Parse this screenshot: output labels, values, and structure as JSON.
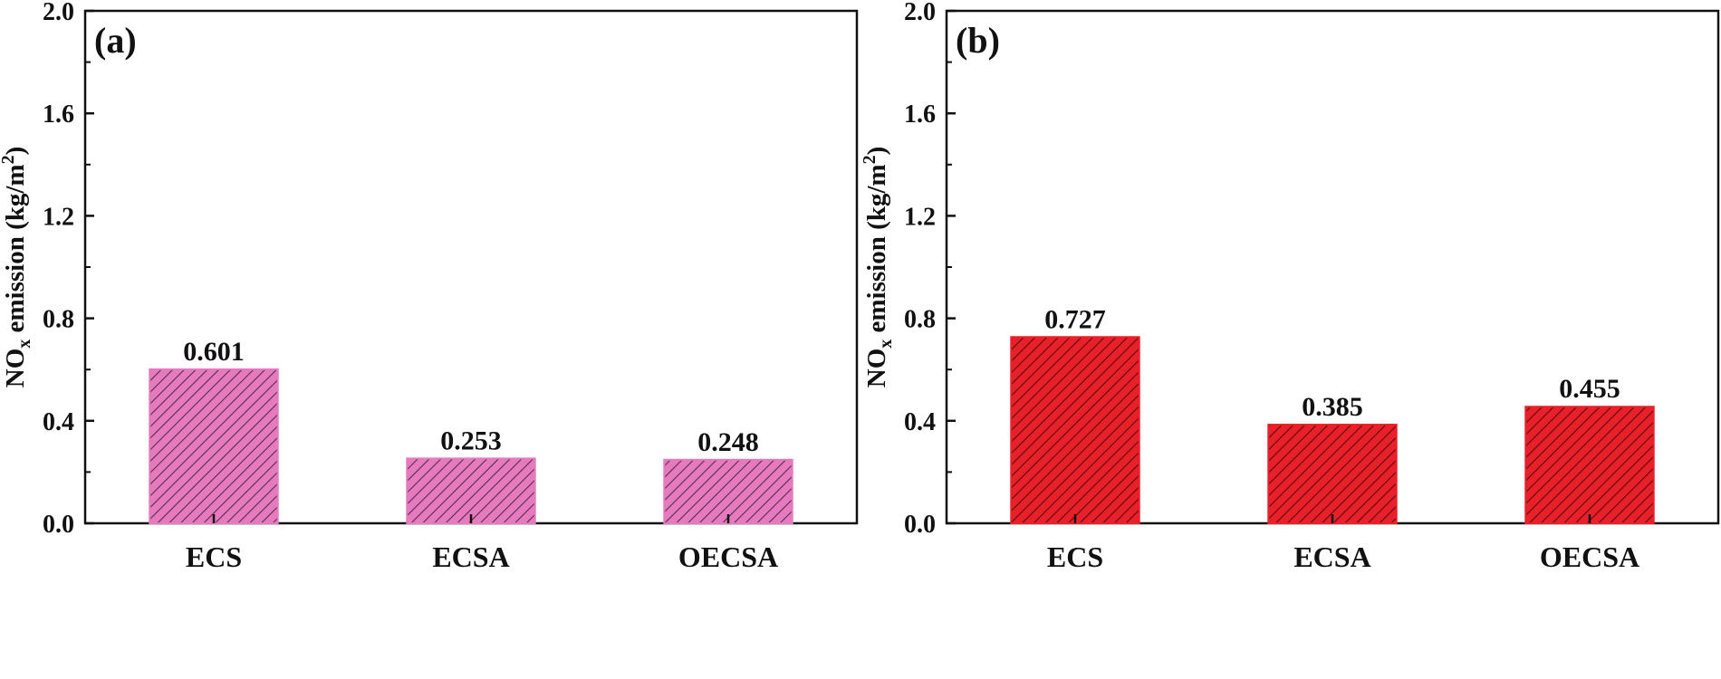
{
  "chart_data": [
    {
      "type": "bar",
      "panel_label": "(a)",
      "categories": [
        "ECS",
        "ECSA",
        "OECSA"
      ],
      "values": [
        0.601,
        0.253,
        0.248
      ],
      "value_labels": [
        "0.601",
        "0.253",
        "0.248"
      ],
      "ylabel": {
        "prefix": "NO",
        "sub": "x",
        "middle": " emission (kg/m",
        "sup": "2",
        "suffix": ")"
      },
      "ylim": [
        0.0,
        2.0
      ],
      "yticks": [
        0.0,
        0.4,
        0.8,
        1.2,
        1.6,
        2.0
      ],
      "ytick_labels": [
        "0.0",
        "0.4",
        "0.8",
        "1.2",
        "1.6",
        "2.0"
      ],
      "bar_color": "#E57BBE",
      "hatch_color": "#5A2A4A",
      "hatch": "diagonal",
      "grid": false
    },
    {
      "type": "bar",
      "panel_label": "(b)",
      "categories": [
        "ECS",
        "ECSA",
        "OECSA"
      ],
      "values": [
        0.727,
        0.385,
        0.455
      ],
      "value_labels": [
        "0.727",
        "0.385",
        "0.455"
      ],
      "ylabel": {
        "prefix": "NO",
        "sub": "x",
        "middle": " emission (kg/m",
        "sup": "2",
        "suffix": ")"
      },
      "ylim": [
        0.0,
        2.0
      ],
      "yticks": [
        0.0,
        0.4,
        0.8,
        1.2,
        1.6,
        2.0
      ],
      "ytick_labels": [
        "0.0",
        "0.4",
        "0.8",
        "1.2",
        "1.6",
        "2.0"
      ],
      "bar_color": "#E8202A",
      "hatch_color": "#5A0A0E",
      "hatch": "diagonal",
      "grid": false
    }
  ]
}
